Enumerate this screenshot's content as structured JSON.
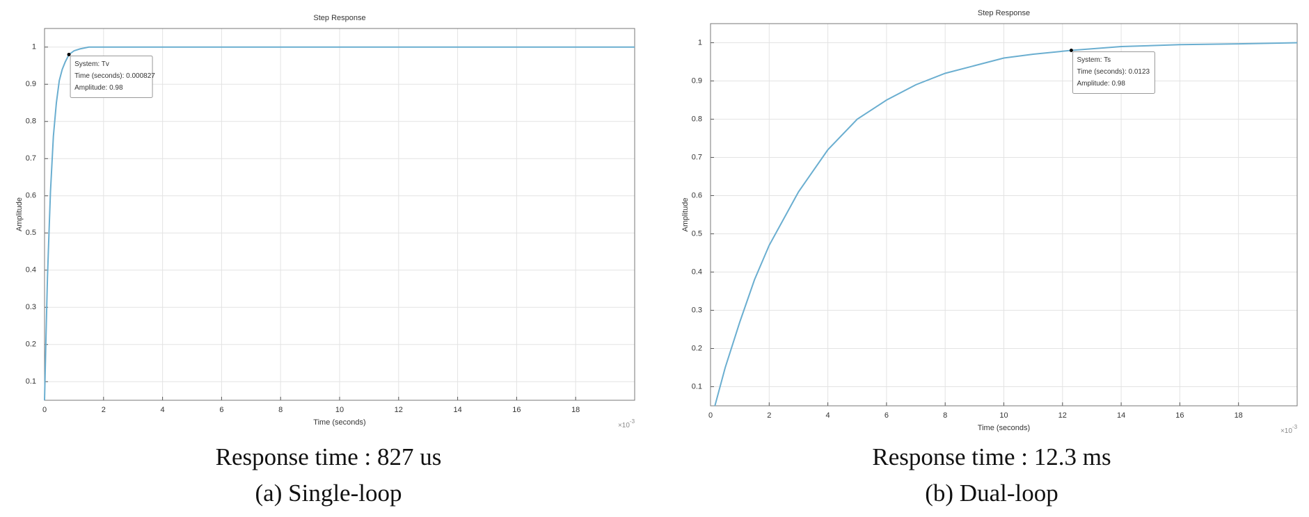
{
  "chart_data": [
    {
      "type": "line",
      "title": "Step Response",
      "x_label": "Time (seconds)",
      "y_label": "Amplitude",
      "x_exponent_base": "×10",
      "x_exponent": "-3",
      "x": [
        0,
        0.05,
        0.1,
        0.15,
        0.2,
        0.3,
        0.4,
        0.5,
        0.6,
        0.7,
        0.827,
        1,
        1.2,
        1.5,
        2,
        4,
        8,
        12,
        16,
        20
      ],
      "series": [
        {
          "name": "Tv",
          "color": "#6aaed0",
          "values": [
            0.05,
            0.22,
            0.38,
            0.5,
            0.61,
            0.76,
            0.85,
            0.91,
            0.94,
            0.96,
            0.98,
            0.99,
            0.995,
            1,
            1,
            1,
            1,
            1,
            1,
            1
          ]
        }
      ],
      "xlim": [
        0,
        20
      ],
      "xticks": [
        0,
        2,
        4,
        6,
        8,
        10,
        12,
        14,
        16,
        18
      ],
      "ylim": [
        0.05,
        1.05
      ],
      "yticks": [
        0.1,
        0.2,
        0.3,
        0.4,
        0.5,
        0.6,
        0.7,
        0.8,
        0.9,
        1
      ],
      "grid": true,
      "datatip": {
        "x": 0.827,
        "y": 0.98,
        "lines": [
          "System: Tv",
          "Time (seconds): 0.000827",
          "Amplitude: 0.98"
        ]
      },
      "captions": [
        "Response time : 827 us",
        "(a) Single-loop"
      ]
    },
    {
      "type": "line",
      "title": "Step Response",
      "x_label": "Time (seconds)",
      "y_label": "Amplitude",
      "x_exponent_base": "×10",
      "x_exponent": "-3",
      "x": [
        0.15,
        0.5,
        1,
        1.5,
        2,
        3,
        4,
        5,
        6,
        7,
        8,
        9,
        10,
        11,
        12.3,
        14,
        16,
        18,
        20
      ],
      "series": [
        {
          "name": "Ts",
          "color": "#6aaed0",
          "values": [
            0.05,
            0.15,
            0.27,
            0.38,
            0.47,
            0.61,
            0.72,
            0.8,
            0.85,
            0.89,
            0.92,
            0.94,
            0.96,
            0.97,
            0.98,
            0.99,
            0.995,
            0.997,
            1
          ]
        }
      ],
      "xlim": [
        0,
        20
      ],
      "xticks": [
        0,
        2,
        4,
        6,
        8,
        10,
        12,
        14,
        16,
        18
      ],
      "ylim": [
        0.05,
        1.05
      ],
      "yticks": [
        0.1,
        0.2,
        0.3,
        0.4,
        0.5,
        0.6,
        0.7,
        0.8,
        0.9,
        1
      ],
      "grid": true,
      "datatip": {
        "x": 12.3,
        "y": 0.98,
        "lines": [
          "System: Ts",
          "Time (seconds): 0.0123",
          "Amplitude: 0.98"
        ]
      },
      "captions": [
        "Response time : 12.3 ms",
        "(b) Dual-loop"
      ]
    }
  ]
}
